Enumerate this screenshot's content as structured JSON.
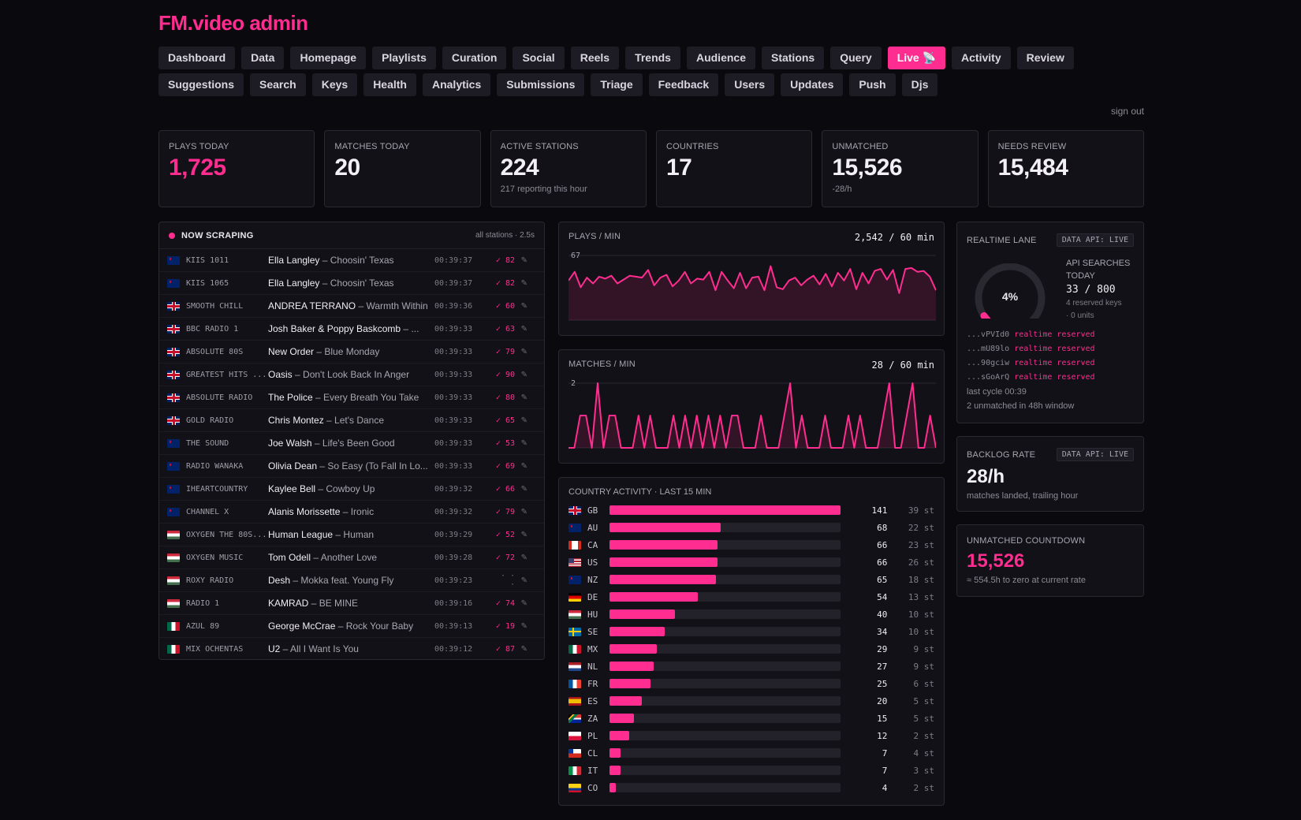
{
  "app": {
    "title": "FM.video admin",
    "sign_out": "sign out"
  },
  "nav": {
    "row1": [
      "Dashboard",
      "Data",
      "Homepage",
      "Playlists",
      "Curation",
      "Social",
      "Reels",
      "Trends",
      "Audience",
      "Stations",
      "Query",
      "Live 📡",
      "Activity",
      "Review"
    ],
    "row2": [
      "Suggestions",
      "Search",
      "Keys",
      "Health",
      "Analytics",
      "Submissions",
      "Triage",
      "Feedback",
      "Users",
      "Updates",
      "Push",
      "Djs"
    ],
    "active": "Live 📡"
  },
  "stats": [
    {
      "label": "PLAYS TODAY",
      "value": "1,725",
      "sub": ""
    },
    {
      "label": "MATCHES TODAY",
      "value": "20",
      "sub": ""
    },
    {
      "label": "ACTIVE STATIONS",
      "value": "224",
      "sub": "217 reporting this hour"
    },
    {
      "label": "COUNTRIES",
      "value": "17",
      "sub": ""
    },
    {
      "label": "UNMATCHED",
      "value": "15,526",
      "sub": "-28/h"
    },
    {
      "label": "NEEDS REVIEW",
      "value": "15,484",
      "sub": ""
    }
  ],
  "scraping": {
    "title": "NOW SCRAPING",
    "meta": "all stations · 2.5s",
    "rows": [
      {
        "flag": "au",
        "station": "KIIS 1011",
        "artist": "Ella Langley",
        "title": "Choosin' Texas",
        "time": "00:39:37",
        "score": "✓ 82"
      },
      {
        "flag": "au",
        "station": "KIIS 1065",
        "artist": "Ella Langley",
        "title": "Choosin' Texas",
        "time": "00:39:37",
        "score": "✓ 82"
      },
      {
        "flag": "gb",
        "station": "SMOOTH CHILL",
        "artist": "ANDREA TERRANO",
        "title": "Warmth Within",
        "time": "00:39:36",
        "score": "✓ 60"
      },
      {
        "flag": "gb",
        "station": "BBC RADIO 1",
        "artist": "Josh Baker & Poppy Baskcomb",
        "title": "...",
        "time": "00:39:33",
        "score": "✓ 63"
      },
      {
        "flag": "gb",
        "station": "ABSOLUTE 80S",
        "artist": "New Order",
        "title": "Blue Monday",
        "time": "00:39:33",
        "score": "✓ 79"
      },
      {
        "flag": "gb",
        "station": "GREATEST HITS ...",
        "artist": "Oasis",
        "title": "Don't Look Back In Anger",
        "time": "00:39:33",
        "score": "✓ 90"
      },
      {
        "flag": "gb",
        "station": "ABSOLUTE RADIO",
        "artist": "The Police",
        "title": "Every Breath You Take",
        "time": "00:39:33",
        "score": "✓ 80"
      },
      {
        "flag": "gb",
        "station": "GOLD RADIO",
        "artist": "Chris Montez",
        "title": "Let's Dance",
        "time": "00:39:33",
        "score": "✓ 65"
      },
      {
        "flag": "nz",
        "station": "THE SOUND",
        "artist": "Joe Walsh",
        "title": "Life's Been Good",
        "time": "00:39:33",
        "score": "✓ 53"
      },
      {
        "flag": "nz",
        "station": "RADIO WĀNAKA",
        "artist": "Olivia Dean",
        "title": "So Easy (To Fall In Lo...",
        "time": "00:39:33",
        "score": "✓ 69"
      },
      {
        "flag": "nz",
        "station": "IHEARTCOUNTRY",
        "artist": "Kaylee Bell",
        "title": "Cowboy Up",
        "time": "00:39:32",
        "score": "✓ 66"
      },
      {
        "flag": "nz",
        "station": "CHANNEL X",
        "artist": "Alanis Morissette",
        "title": "Ironic",
        "time": "00:39:32",
        "score": "✓ 79"
      },
      {
        "flag": "hu",
        "station": "OXYGEN THE 80S...",
        "artist": "Human League",
        "title": "Human",
        "time": "00:39:29",
        "score": "✓ 52"
      },
      {
        "flag": "hu",
        "station": "OXYGEN MUSIC",
        "artist": "Tom Odell",
        "title": "Another Love",
        "time": "00:39:28",
        "score": "✓ 72"
      },
      {
        "flag": "hu",
        "station": "ROXY RÁDIÓ",
        "artist": "Desh",
        "title": "Mokka feat. Young Fly",
        "time": "00:39:23",
        "score": "· · ·"
      },
      {
        "flag": "hu",
        "station": "RÁDIÓ 1",
        "artist": "KAMRAD",
        "title": "BE MINE",
        "time": "00:39:16",
        "score": "✓ 74"
      },
      {
        "flag": "mx",
        "station": "AZUL 89",
        "artist": "George McCrae",
        "title": "Rock Your Baby",
        "time": "00:39:13",
        "score": "✓ 19"
      },
      {
        "flag": "mx",
        "station": "MIX OCHENTAS",
        "artist": "U2",
        "title": "All I Want Is You",
        "time": "00:39:12",
        "score": "✓ 87"
      }
    ]
  },
  "plays_chart": {
    "title": "PLAYS / MIN",
    "value": "2,542 / 60 min",
    "ymax_label": "67",
    "ymax": 67,
    "values": [
      41,
      50,
      34,
      44,
      38,
      45,
      43,
      46,
      38,
      42,
      46,
      45,
      44,
      52,
      36,
      44,
      47,
      35,
      41,
      50,
      38,
      43,
      42,
      50,
      31,
      50,
      41,
      33,
      49,
      33,
      44,
      45,
      31,
      56,
      34,
      32,
      41,
      44,
      36,
      42,
      46,
      37,
      48,
      35,
      49,
      41,
      53,
      32,
      49,
      38,
      51,
      53,
      42,
      52,
      28,
      53,
      54,
      50,
      51,
      45,
      31
    ],
    "colors": {
      "line": "#ff2d8f"
    }
  },
  "matches_chart": {
    "title": "MATCHES / MIN",
    "value": "28 / 60 min",
    "ymax_label": "2",
    "ymax": 2,
    "values": [
      0,
      0,
      1,
      1,
      0,
      2,
      0,
      1,
      1,
      0,
      0,
      0,
      1,
      0,
      1,
      0,
      0,
      0,
      1,
      0,
      1,
      0,
      1,
      0,
      1,
      0,
      1,
      0,
      1,
      1,
      0,
      0,
      0,
      1,
      0,
      0,
      0,
      1,
      2,
      0,
      1,
      0,
      0,
      0,
      1,
      0,
      0,
      0,
      1,
      0,
      1,
      0,
      0,
      0,
      1,
      2,
      0,
      0,
      1,
      2,
      0,
      0,
      1,
      0
    ],
    "colors": {
      "line": "#ff2d8f"
    }
  },
  "country": {
    "title": "COUNTRY ACTIVITY · LAST 15 MIN",
    "max": 141,
    "rows": [
      {
        "flag": "gb",
        "code": "GB",
        "value": 141,
        "stations": "39 st"
      },
      {
        "flag": "au",
        "code": "AU",
        "value": 68,
        "stations": "22 st"
      },
      {
        "flag": "ca",
        "code": "CA",
        "value": 66,
        "stations": "23 st"
      },
      {
        "flag": "us",
        "code": "US",
        "value": 66,
        "stations": "26 st"
      },
      {
        "flag": "nz",
        "code": "NZ",
        "value": 65,
        "stations": "18 st"
      },
      {
        "flag": "de",
        "code": "DE",
        "value": 54,
        "stations": "13 st"
      },
      {
        "flag": "hu",
        "code": "HU",
        "value": 40,
        "stations": "10 st"
      },
      {
        "flag": "se",
        "code": "SE",
        "value": 34,
        "stations": "10 st"
      },
      {
        "flag": "mx",
        "code": "MX",
        "value": 29,
        "stations": "9 st"
      },
      {
        "flag": "nl",
        "code": "NL",
        "value": 27,
        "stations": "9 st"
      },
      {
        "flag": "fr",
        "code": "FR",
        "value": 25,
        "stations": "6 st"
      },
      {
        "flag": "es",
        "code": "ES",
        "value": 20,
        "stations": "5 st"
      },
      {
        "flag": "za",
        "code": "ZA",
        "value": 15,
        "stations": "5 st"
      },
      {
        "flag": "pl",
        "code": "PL",
        "value": 12,
        "stations": "2 st"
      },
      {
        "flag": "cl",
        "code": "CL",
        "value": 7,
        "stations": "4 st"
      },
      {
        "flag": "it",
        "code": "IT",
        "value": 7,
        "stations": "3 st"
      },
      {
        "flag": "co",
        "code": "CO",
        "value": 4,
        "stations": "2 st"
      }
    ]
  },
  "realtime": {
    "title": "REALTIME LANE",
    "badge": "DATA API: LIVE",
    "gauge_percent": "4%",
    "gauge_value": 0.04,
    "api_label": "API SEARCHES TODAY",
    "api_value": "33 / 800",
    "reserved_keys": "4 reserved keys",
    "units": "· 0 units",
    "keys": [
      {
        "key": "...vPVId0",
        "status": "realtime reserved"
      },
      {
        "key": "...mU89lo",
        "status": "realtime reserved"
      },
      {
        "key": "...90gciw",
        "status": "realtime reserved"
      },
      {
        "key": "...sGoArQ",
        "status": "realtime reserved"
      }
    ],
    "last_cycle": "last cycle 00:39",
    "unmatched_window": "2 unmatched in 48h window"
  },
  "backlog": {
    "title": "BACKLOG RATE",
    "badge": "DATA API: LIVE",
    "value": "28/h",
    "sub": "matches landed, trailing hour"
  },
  "countdown": {
    "title": "UNMATCHED COUNTDOWN",
    "value": "15,526",
    "sub": "≈ 554.5h to zero at current rate"
  },
  "colors": {
    "accent": "#ff2d8f",
    "bg": "#0a090d",
    "panel": "#121117"
  }
}
